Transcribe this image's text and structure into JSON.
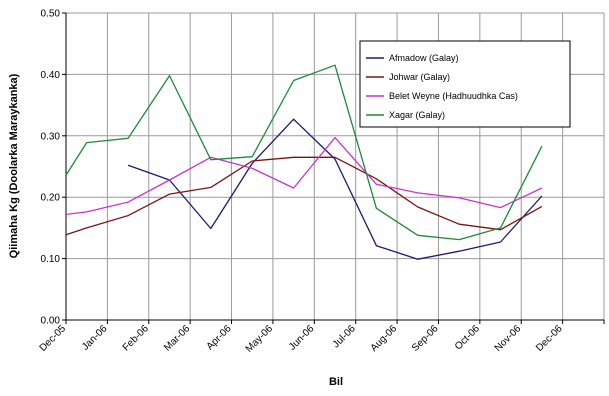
{
  "chart_data": {
    "type": "line",
    "title": "",
    "xlabel": "Bil",
    "ylabel": "Qiimaha Kg (Doolarka Maraykanka)",
    "categories": [
      "Dec-05",
      "Jan-06",
      "Feb-06",
      "Mar-06",
      "Apr-06",
      "May-06",
      "Jun-06",
      "Jul-06",
      "Aug-06",
      "Sep-06",
      "Oct-06",
      "Nov-06",
      "Dec-06"
    ],
    "yticks": [
      "0.00",
      "0.10",
      "0.20",
      "0.30",
      "0.40",
      "0.50"
    ],
    "ylim": [
      0,
      0.5
    ],
    "grid": true,
    "legend_position": "top-right",
    "series": [
      {
        "name": "Afmadow (Galay)",
        "color": "#1f1a6e",
        "points": [
          [
            1.5,
            0.252
          ],
          [
            2.5,
            0.228
          ],
          [
            3.5,
            0.149
          ],
          [
            4.5,
            0.255
          ],
          [
            5.5,
            0.327
          ],
          [
            6.5,
            0.262
          ],
          [
            7.5,
            0.121
          ],
          [
            8.5,
            0.099
          ],
          [
            9.5,
            0.112
          ],
          [
            10.5,
            0.127
          ],
          [
            11.5,
            0.202
          ]
        ]
      },
      {
        "name": "Johwar (Galay)",
        "color": "#7a1414",
        "points": [
          [
            0,
            0.139
          ],
          [
            0.5,
            0.15
          ],
          [
            1.5,
            0.17
          ],
          [
            2.5,
            0.205
          ],
          [
            3.5,
            0.216
          ],
          [
            4.5,
            0.259
          ],
          [
            5.5,
            0.265
          ],
          [
            6.5,
            0.265
          ],
          [
            7.5,
            0.23
          ],
          [
            8.5,
            0.184
          ],
          [
            9.5,
            0.156
          ],
          [
            10.5,
            0.147
          ],
          [
            11.5,
            0.185
          ]
        ]
      },
      {
        "name": "Belet Weyne (Hadhuudhka Cas)",
        "color": "#cc33cc",
        "points": [
          [
            0,
            0.172
          ],
          [
            0.5,
            0.176
          ],
          [
            1.5,
            0.192
          ],
          [
            2.5,
            0.228
          ],
          [
            3.5,
            0.265
          ],
          [
            4.5,
            0.247
          ],
          [
            5.5,
            0.215
          ],
          [
            6.5,
            0.297
          ],
          [
            7.5,
            0.221
          ],
          [
            8.5,
            0.207
          ],
          [
            9.5,
            0.199
          ],
          [
            10.5,
            0.183
          ],
          [
            11.5,
            0.215
          ]
        ]
      },
      {
        "name": "Xagar (Galay)",
        "color": "#1e8a3c",
        "points": [
          [
            0,
            0.236
          ],
          [
            0.5,
            0.289
          ],
          [
            1.5,
            0.296
          ],
          [
            2.5,
            0.398
          ],
          [
            3.5,
            0.261
          ],
          [
            4.5,
            0.266
          ],
          [
            5.5,
            0.39
          ],
          [
            6.5,
            0.415
          ],
          [
            7.5,
            0.182
          ],
          [
            8.5,
            0.138
          ],
          [
            9.5,
            0.131
          ],
          [
            10.5,
            0.15
          ],
          [
            11.5,
            0.283
          ]
        ]
      }
    ]
  }
}
